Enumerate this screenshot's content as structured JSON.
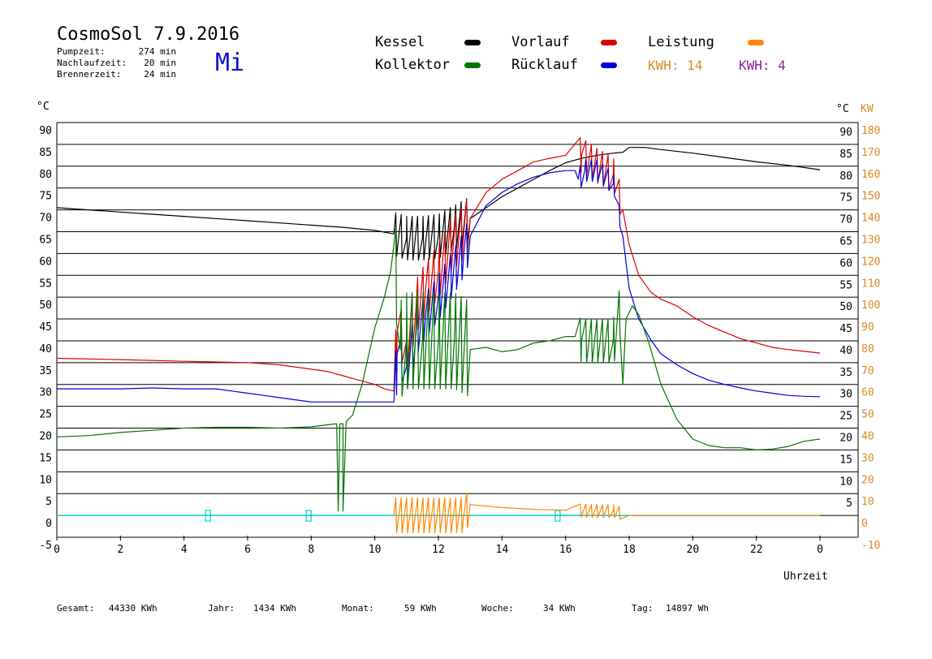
{
  "header": {
    "title": "CosmoSol 7.9.2016",
    "weekday": "Mi",
    "info": [
      {
        "label": "Pumpzeit:",
        "value": "274 min"
      },
      {
        "label": "Nachlaufzeit:",
        "value": "20 min"
      },
      {
        "label": "Brennerzeit:",
        "value": "24 min"
      }
    ]
  },
  "legend": [
    {
      "name": "Kessel",
      "color": "#000000"
    },
    {
      "name": "Kollektor",
      "color": "#007700"
    },
    {
      "name": "Vorlauf",
      "color": "#dd0000"
    },
    {
      "name": "Rücklauf",
      "color": "#0000dd"
    },
    {
      "name": "Leistung",
      "color": "#ff8800"
    }
  ],
  "kwh": [
    {
      "text": "KWH: 14",
      "color": "#dd8822"
    },
    {
      "text": "KWH: 4",
      "color": "#882288"
    }
  ],
  "footer": [
    {
      "label": "Gesamt:",
      "value": "44330 KWh"
    },
    {
      "label": "Jahr:",
      "value": "1434 KWh"
    },
    {
      "label": "Monat:",
      "value": "59 KWh"
    },
    {
      "label": "Woche:",
      "value": "34 KWh"
    },
    {
      "label": "Tag:",
      "value": "14897 Wh"
    }
  ],
  "chart_data": {
    "type": "line",
    "xlabel": "Uhrzeit",
    "ylabel_left": "°C",
    "ylabel_right_temp": "°C",
    "ylabel_right_power": "KW",
    "xlim": [
      0,
      24
    ],
    "ylim": [
      -5,
      90
    ],
    "x_ticks": [
      "0",
      "2",
      "4",
      "6",
      "8",
      "10",
      "12",
      "14",
      "16",
      "18",
      "20",
      "22",
      "0"
    ],
    "y_ticks_left": [
      "90",
      "85",
      "80",
      "75",
      "70",
      "65",
      "60",
      "55",
      "50",
      "45",
      "40",
      "35",
      "30",
      "25",
      "20",
      "15",
      "10",
      "5",
      "0",
      "-5"
    ],
    "y_ticks_right_temp": [
      "90",
      "85",
      "80",
      "75",
      "70",
      "65",
      "60",
      "55",
      "50",
      "45",
      "40",
      "35",
      "30",
      "25",
      "20",
      "15",
      "10",
      "5"
    ],
    "y_ticks_right_power": [
      "180",
      "170",
      "160",
      "150",
      "140",
      "130",
      "120",
      "110",
      "100",
      "90",
      "80",
      "70",
      "60",
      "50",
      "40",
      "30",
      "20",
      "10",
      "0",
      "-10"
    ],
    "grid": true,
    "series": [
      {
        "name": "Kessel",
        "color": "#000000",
        "x": [
          0,
          1,
          2,
          3,
          4,
          5,
          6,
          7,
          8,
          9,
          10,
          10.6,
          11,
          11.5,
          12,
          12.5,
          13,
          13.5,
          14,
          14.5,
          15,
          15.5,
          16,
          16.5,
          17,
          17.5,
          17.8,
          18,
          18.5,
          19,
          20,
          21,
          22,
          23,
          24
        ],
        "y": [
          70.5,
          70,
          69.5,
          69,
          68.5,
          68,
          67.5,
          67,
          66.5,
          66,
          65.3,
          64.5,
          63.5,
          63.5,
          64,
          66,
          68,
          70.5,
          73,
          75,
          77,
          79,
          80.8,
          81.8,
          82.5,
          83,
          83.2,
          84.3,
          84.3,
          83.8,
          83,
          82,
          81,
          80.2,
          79.2
        ]
      },
      {
        "name": "Vorlauf",
        "color": "#dd0000",
        "x": [
          0,
          2,
          4,
          6,
          7,
          8,
          8.5,
          9,
          9.5,
          10,
          10.3,
          10.6,
          10.7,
          11,
          11.3,
          11.6,
          12,
          12.4,
          12.8,
          13,
          13.5,
          14,
          14.5,
          15,
          15.5,
          16,
          16.5,
          17,
          17.5,
          17.8,
          18,
          18.3,
          18.7,
          19,
          19.5,
          20,
          20.5,
          21,
          21.5,
          22,
          22.5,
          23,
          23.5,
          24
        ],
        "y": [
          36,
          35.7,
          35.3,
          35,
          34.5,
          33.5,
          33,
          32,
          31,
          30,
          29,
          28.5,
          42,
          40,
          48,
          52,
          56,
          62,
          65,
          68,
          74,
          77,
          79,
          81,
          81.8,
          82.5,
          82.5,
          80,
          78,
          70,
          62,
          55,
          51,
          49.5,
          48,
          45.5,
          43.5,
          42,
          40.5,
          39.5,
          38.5,
          38,
          37.6,
          37.2
        ]
      },
      {
        "name": "Rücklauf",
        "color": "#0000dd",
        "x": [
          0,
          1,
          2,
          3,
          4,
          5,
          5.5,
          6,
          6.5,
          7,
          7.5,
          8,
          9,
          10,
          10.6,
          10.7,
          11,
          11.3,
          11.6,
          12,
          12.4,
          12.8,
          13,
          13.5,
          14,
          14.5,
          15,
          15.5,
          16,
          16.3,
          16.4,
          16.6,
          17,
          17.5,
          17.8,
          18,
          18.3,
          18.7,
          19,
          19.5,
          20,
          20.5,
          21,
          21.5,
          22,
          22.5,
          23,
          23.5,
          24
        ],
        "y": [
          29,
          29,
          29,
          29.2,
          29,
          29,
          28.5,
          28,
          27.5,
          27,
          26.5,
          26,
          26,
          26,
          26,
          37,
          34,
          42,
          46,
          50,
          55,
          60,
          64,
          71,
          74,
          76,
          77.5,
          78.5,
          79,
          79,
          77,
          79,
          79,
          76,
          64,
          52,
          45,
          40,
          37,
          34.5,
          32.5,
          31,
          30,
          29.2,
          28.5,
          28,
          27.5,
          27.3,
          27.2
        ]
      },
      {
        "name": "Kollektor",
        "color": "#007700",
        "x": [
          0,
          1,
          2,
          3,
          4,
          5,
          6,
          7,
          8,
          8.8,
          8.85,
          8.9,
          9,
          9,
          9.1,
          9.3,
          9.6,
          10,
          10.3,
          10.5,
          10.6,
          10.8,
          11,
          11.5,
          12,
          12.5,
          13,
          13.5,
          14,
          14.5,
          15,
          15.5,
          16,
          16.3,
          16.5,
          17,
          17.5,
          17.7,
          17.8,
          17.9,
          18.1,
          18.3,
          18.6,
          19,
          19.5,
          20,
          20.5,
          21,
          21.5,
          22,
          22.5,
          23,
          23.5,
          24
        ],
        "y": [
          18,
          18.3,
          19,
          19.5,
          20,
          20.2,
          20.2,
          20,
          20.3,
          21,
          1,
          21,
          21,
          1,
          21.5,
          23,
          30,
          43,
          50,
          56,
          62,
          38,
          40,
          40,
          40,
          40,
          38,
          38.5,
          37.5,
          38,
          39.5,
          40,
          41,
          41,
          40,
          40,
          40,
          47,
          30,
          45,
          48,
          46,
          40,
          30,
          22,
          17.5,
          16,
          15.5,
          15.5,
          15,
          15.2,
          15.8,
          17,
          17.5
        ]
      },
      {
        "name": "Leistung",
        "color": "#ff8800",
        "x": [
          10.6,
          12.8,
          13,
          14,
          15,
          16,
          17,
          17.5,
          18,
          24
        ],
        "y": [
          0,
          0,
          2.5,
          1.8,
          1.4,
          1.2,
          1,
          1,
          0,
          0
        ]
      }
    ],
    "oscillations": [
      {
        "series": "Kessel",
        "x_start": 10.6,
        "x_end": 13.0,
        "count": 14,
        "amplitude": 10
      },
      {
        "series": "Vorlauf",
        "x_start": 10.6,
        "x_end": 13.0,
        "count": 14,
        "amplitude": 12
      },
      {
        "series": "Rücklauf",
        "x_start": 10.6,
        "x_end": 13.0,
        "count": 14,
        "amplitude": 10
      },
      {
        "series": "Kollektor",
        "x_start": 10.6,
        "x_end": 13.0,
        "count": 14,
        "amplitude": 22
      },
      {
        "series": "Leistung",
        "x_start": 10.6,
        "x_end": 13.0,
        "count": 14,
        "amplitude": 8
      },
      {
        "series": "Vorlauf",
        "x_start": 16.4,
        "x_end": 17.8,
        "count": 8,
        "amplitude": 8
      },
      {
        "series": "Rücklauf",
        "x_start": 16.4,
        "x_end": 17.8,
        "count": 8,
        "amplitude": 5
      },
      {
        "series": "Kollektor",
        "x_start": 16.4,
        "x_end": 17.8,
        "count": 8,
        "amplitude": 10
      },
      {
        "series": "Leistung",
        "x_start": 16.4,
        "x_end": 17.8,
        "count": 8,
        "amplitude": 3
      }
    ],
    "baseline_color": "#00d0d0",
    "markers_x": [
      4.75,
      7.92,
      15.75
    ]
  }
}
